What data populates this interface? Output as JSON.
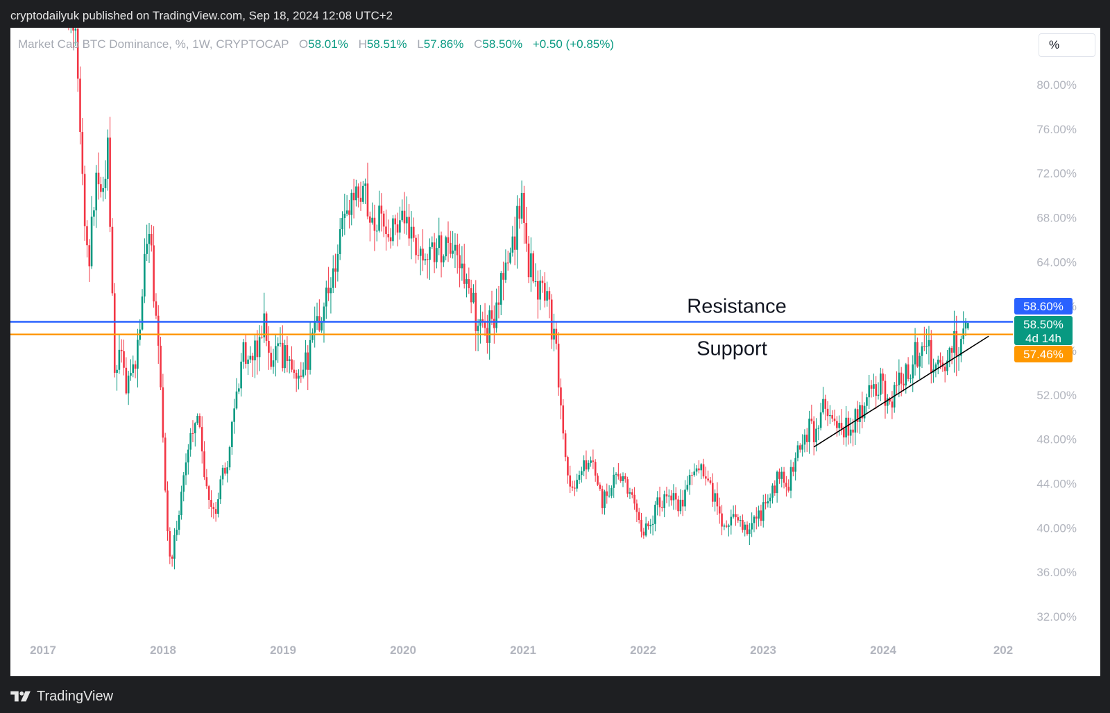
{
  "header": {
    "published": "cryptodailyuk published on TradingView.com, Sep 18, 2024 12:08 UTC+2"
  },
  "legend": {
    "symbol": "Market Cap BTC Dominance, %, 1W, CRYPTOCAP",
    "open_label": "O",
    "open": "58.01%",
    "high_label": "H",
    "high": "58.51%",
    "low_label": "L",
    "low": "57.86%",
    "close_label": "C",
    "close": "58.50%",
    "change": "+0.50 (+0.85%)"
  },
  "scale_button": {
    "label": "%"
  },
  "footer": {
    "brand": "TradingView"
  },
  "colors": {
    "up": "#089981",
    "down": "#f23645",
    "resistance": "#2962ff",
    "support": "#ff9800",
    "trendline": "#000000",
    "axis_text": "#b2b5be"
  },
  "chart_data": {
    "type": "candlestick",
    "timeframe": "1W",
    "y_unit": "%",
    "x_ticks": [
      "2017",
      "2018",
      "2019",
      "2020",
      "2021",
      "2022",
      "2023",
      "2024",
      "202"
    ],
    "y_ticks": [
      "32.00%",
      "36.00%",
      "40.00%",
      "44.00%",
      "48.00%",
      "52.00%",
      "56.00%",
      "60.00%",
      "64.00%",
      "68.00%",
      "72.00%",
      "76.00%",
      "80.00%"
    ],
    "ylim": [
      29.5,
      84.5
    ],
    "price_path": [
      [
        "2017-03-20",
        86
      ],
      [
        "2017-04-10",
        84
      ],
      [
        "2017-05-08",
        66
      ],
      [
        "2017-05-22",
        64
      ],
      [
        "2017-06-12",
        72
      ],
      [
        "2017-06-26",
        70
      ],
      [
        "2017-07-17",
        74
      ],
      [
        "2017-08-07",
        55
      ],
      [
        "2017-08-21",
        56
      ],
      [
        "2017-09-11",
        53
      ],
      [
        "2017-10-09",
        55
      ],
      [
        "2017-11-06",
        64
      ],
      [
        "2017-11-20",
        66
      ],
      [
        "2017-12-04",
        62
      ],
      [
        "2017-12-18",
        58
      ],
      [
        "2018-01-08",
        44
      ],
      [
        "2018-01-22",
        37
      ],
      [
        "2018-02-12",
        40
      ],
      [
        "2018-03-05",
        44
      ],
      [
        "2018-03-26",
        48
      ],
      [
        "2018-04-16",
        50
      ],
      [
        "2018-05-07",
        45
      ],
      [
        "2018-06-04",
        41
      ],
      [
        "2018-06-25",
        44
      ],
      [
        "2018-07-16",
        46
      ],
      [
        "2018-08-13",
        52
      ],
      [
        "2018-09-03",
        56
      ],
      [
        "2018-09-24",
        55
      ],
      [
        "2018-10-15",
        57
      ],
      [
        "2018-11-05",
        58
      ],
      [
        "2018-11-26",
        55
      ],
      [
        "2018-12-17",
        56
      ],
      [
        "2019-01-14",
        55
      ],
      [
        "2019-02-11",
        54
      ],
      [
        "2019-03-11",
        55
      ],
      [
        "2019-04-08",
        58
      ],
      [
        "2019-05-06",
        60
      ],
      [
        "2019-06-10",
        64
      ],
      [
        "2019-07-15",
        68
      ],
      [
        "2019-08-12",
        70
      ],
      [
        "2019-09-09",
        70
      ],
      [
        "2019-10-07",
        68
      ],
      [
        "2019-11-11",
        67
      ],
      [
        "2019-12-16",
        68
      ],
      [
        "2020-01-13",
        68
      ],
      [
        "2020-02-17",
        64
      ],
      [
        "2020-03-16",
        65
      ],
      [
        "2020-04-20",
        65
      ],
      [
        "2020-05-18",
        67
      ],
      [
        "2020-06-15",
        64
      ],
      [
        "2020-07-20",
        62
      ],
      [
        "2020-08-17",
        58
      ],
      [
        "2020-09-14",
        58
      ],
      [
        "2020-10-12",
        60
      ],
      [
        "2020-11-09",
        64
      ],
      [
        "2020-12-07",
        66
      ],
      [
        "2020-12-28",
        71
      ],
      [
        "2021-01-18",
        64
      ],
      [
        "2021-02-15",
        62
      ],
      [
        "2021-03-15",
        61
      ],
      [
        "2021-04-05",
        57
      ],
      [
        "2021-04-26",
        52
      ],
      [
        "2021-05-17",
        44
      ],
      [
        "2021-06-07",
        44
      ],
      [
        "2021-07-05",
        46
      ],
      [
        "2021-08-02",
        46
      ],
      [
        "2021-08-30",
        42
      ],
      [
        "2021-09-27",
        44
      ],
      [
        "2021-10-25",
        45
      ],
      [
        "2021-11-22",
        43
      ],
      [
        "2021-12-20",
        40
      ],
      [
        "2022-01-17",
        40
      ],
      [
        "2022-02-14",
        42
      ],
      [
        "2022-03-21",
        43
      ],
      [
        "2022-04-25",
        42
      ],
      [
        "2022-05-23",
        44
      ],
      [
        "2022-06-13",
        46
      ],
      [
        "2022-07-04",
        45
      ],
      [
        "2022-08-01",
        43
      ],
      [
        "2022-09-05",
        40
      ],
      [
        "2022-10-03",
        41
      ],
      [
        "2022-11-07",
        40
      ],
      [
        "2022-12-12",
        41
      ],
      [
        "2023-01-16",
        42
      ],
      [
        "2023-02-20",
        45
      ],
      [
        "2023-03-20",
        44
      ],
      [
        "2023-04-24",
        48
      ],
      [
        "2023-05-22",
        49
      ],
      [
        "2023-06-19",
        48
      ],
      [
        "2023-07-03",
        51
      ],
      [
        "2023-08-07",
        50
      ],
      [
        "2023-09-11",
        49
      ],
      [
        "2023-10-16",
        50
      ],
      [
        "2023-11-20",
        52
      ],
      [
        "2023-12-25",
        53
      ],
      [
        "2024-01-22",
        51
      ],
      [
        "2024-02-19",
        53
      ],
      [
        "2024-03-18",
        54
      ],
      [
        "2024-04-15",
        56
      ],
      [
        "2024-05-13",
        56
      ],
      [
        "2024-06-10",
        55
      ],
      [
        "2024-07-08",
        55
      ],
      [
        "2024-08-05",
        57
      ],
      [
        "2024-09-02",
        57
      ],
      [
        "2024-09-16",
        58.5
      ]
    ],
    "horizontal_lines": [
      {
        "name": "Resistance",
        "value": 58.6,
        "color": "#2962ff",
        "price_label": "58.60%"
      },
      {
        "name": "Support",
        "value": 57.46,
        "color": "#ff9800",
        "price_label": "57.46%"
      }
    ],
    "current_price": {
      "value": "58.50%",
      "countdown": "4d 14h"
    },
    "trendline": {
      "start": [
        "2023-06-05",
        47.3
      ],
      "end": [
        "2024-11-18",
        57.3
      ]
    }
  }
}
